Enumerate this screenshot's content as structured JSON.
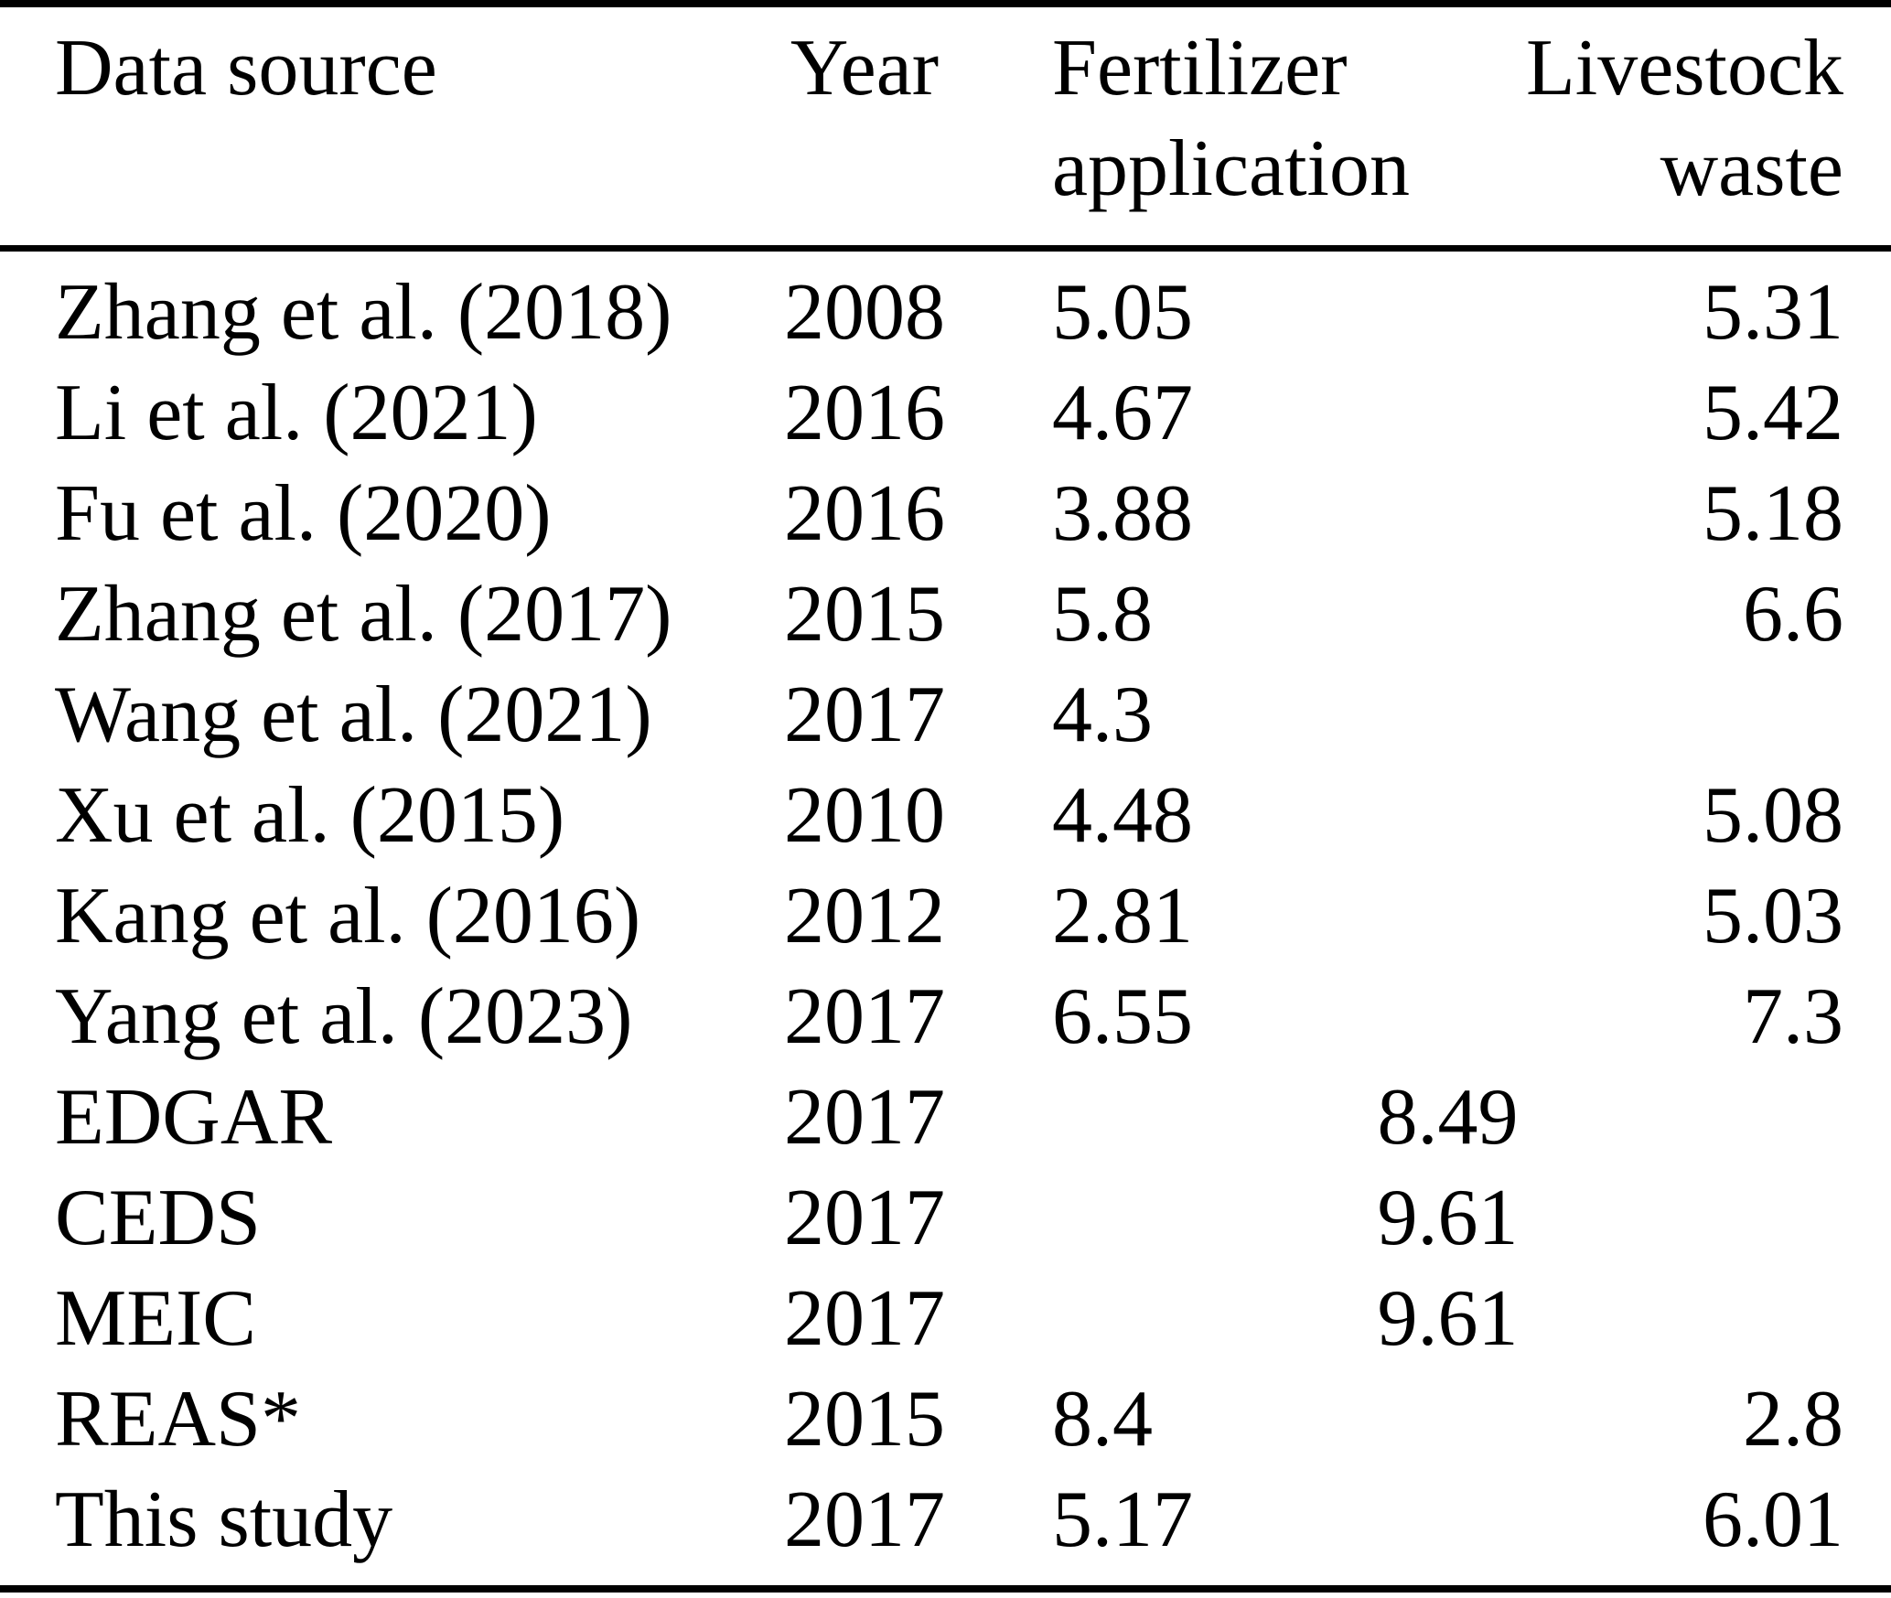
{
  "table": {
    "columns": [
      {
        "label": "Data source",
        "align": "left"
      },
      {
        "label": "Year",
        "align": "center"
      },
      {
        "label": "Fertilizer application",
        "align": "left"
      },
      {
        "label": "Livestock waste",
        "align": "right"
      }
    ],
    "rows": [
      {
        "source": "Zhang et al. (2018)",
        "year": "2008",
        "fertilizer": "5.05",
        "livestock": "5.31"
      },
      {
        "source": "Li et al. (2021)",
        "year": "2016",
        "fertilizer": "4.67",
        "livestock": "5.42"
      },
      {
        "source": "Fu et al. (2020)",
        "year": "2016",
        "fertilizer": "3.88",
        "livestock": "5.18"
      },
      {
        "source": "Zhang et al. (2017)",
        "year": "2015",
        "fertilizer": "5.8",
        "livestock": "6.6"
      },
      {
        "source": "Wang et al. (2021)",
        "year": "2017",
        "fertilizer": "4.3",
        "livestock": ""
      },
      {
        "source": "Xu et al. (2015)",
        "year": "2010",
        "fertilizer": "4.48",
        "livestock": "5.08"
      },
      {
        "source": "Kang et al. (2016)",
        "year": "2012",
        "fertilizer": "2.81",
        "livestock": "5.03"
      },
      {
        "source": "Yang et al. (2023)",
        "year": "2017",
        "fertilizer": "6.55",
        "livestock": "7.3"
      },
      {
        "source": "EDGAR",
        "year": "2017",
        "combined": "8.49"
      },
      {
        "source": "CEDS",
        "year": "2017",
        "combined": "9.61"
      },
      {
        "source": "MEIC",
        "year": "2017",
        "combined": "9.61"
      },
      {
        "source": "REAS*",
        "year": "2015",
        "fertilizer": "8.4",
        "livestock": "2.8"
      },
      {
        "source": "This study",
        "year": "2017",
        "fertilizer": "5.17",
        "livestock": "6.01"
      }
    ],
    "colors": {
      "text": "#000000",
      "background": "#ffffff",
      "rule": "#000000"
    }
  }
}
